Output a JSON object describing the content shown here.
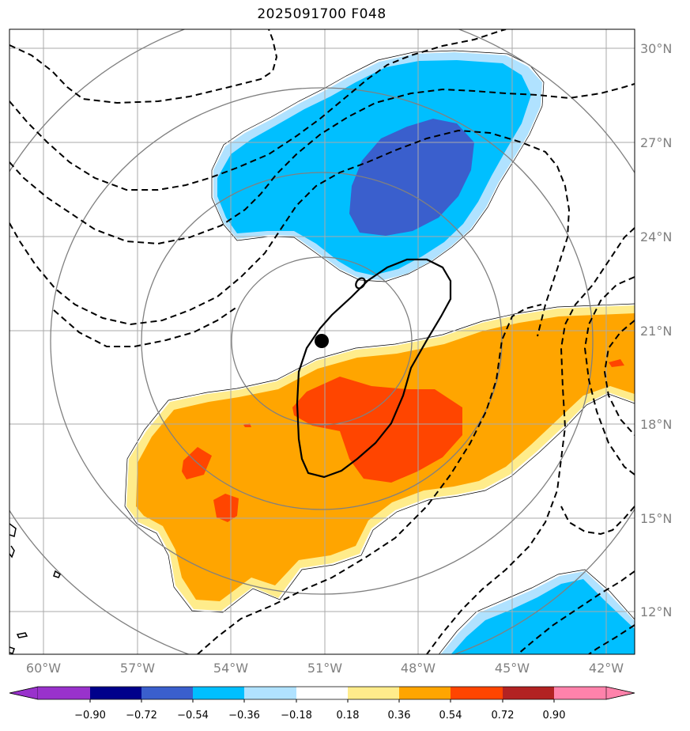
{
  "title": "2025091700 F048",
  "axes": {
    "lat_labels": [
      "30°N",
      "27°N",
      "24°N",
      "21°N",
      "18°N",
      "15°N",
      "12°N"
    ],
    "lon_labels": [
      "60°W",
      "57°W",
      "54°W",
      "51°W",
      "48°W",
      "45°W",
      "42°W"
    ],
    "lat_values": [
      30,
      27,
      24,
      21,
      18,
      15,
      12
    ],
    "lon_values": [
      -60,
      -57,
      -54,
      -51,
      -48,
      -45,
      -42
    ],
    "lat_range": [
      10.7,
      30.6
    ],
    "lon_range": [
      -61.1,
      -41.1
    ],
    "grid": true
  },
  "storm_center": {
    "lat": 20.6,
    "lon": -51.0
  },
  "range_rings_count": 4,
  "colorbar": {
    "tick_labels": [
      "−0.90",
      "−0.72",
      "−0.54",
      "−0.36",
      "−0.18",
      "0.18",
      "0.36",
      "0.54",
      "0.72",
      "0.90"
    ],
    "bins": [
      -0.9,
      -0.72,
      -0.54,
      -0.36,
      -0.18,
      0.18,
      0.36,
      0.54,
      0.72,
      0.9
    ],
    "colors": [
      "#9932cc",
      "#00008b",
      "#3a5fcd",
      "#00bfff",
      "#b0e2ff",
      "#ffffff",
      "#ffec8b",
      "#ffa500",
      "#ff4500",
      "#b22222",
      "#ff82ab"
    ],
    "extend": "both"
  },
  "colors": {
    "positive_1": "#ffec8b",
    "positive_2": "#ffa500",
    "positive_3": "#ff4500",
    "negative_1": "#b0e2ff",
    "negative_2": "#00bfff",
    "negative_3": "#3a5fcd",
    "grid": "#aaaaaa",
    "ring": "#808080",
    "contour": "#000000"
  }
}
